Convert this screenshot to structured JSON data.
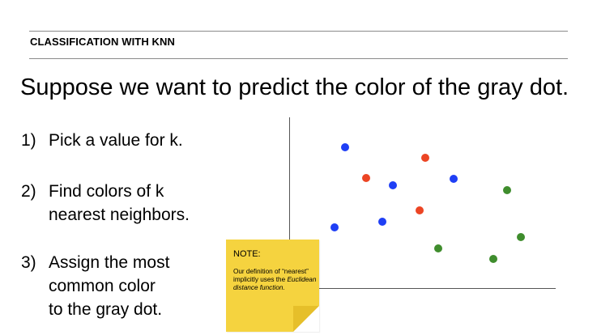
{
  "section_label": "CLASSIFICATION WITH KNN",
  "headline": "Suppose we want to predict the color of the gray dot.",
  "steps": [
    {
      "number": "1)",
      "lines": [
        "Pick a value for k."
      ]
    },
    {
      "number": "2)",
      "lines": [
        "Find colors of k",
        "nearest neighbors."
      ]
    },
    {
      "number": "3)",
      "lines": [
        "Assign the most",
        "common color",
        "to the gray dot."
      ]
    }
  ],
  "note": {
    "title": "NOTE:",
    "body_prefix": "Our definition of “nearest” implicitly uses the ",
    "body_emphasis": "Euclidean distance function."
  },
  "colors": {
    "blue": "#1f3ff5",
    "red": "#ec4524",
    "green": "#3f8d2d",
    "note_yellow": "#f5d33f",
    "rule_gray": "#8a8a8a"
  },
  "chart_data": {
    "type": "scatter",
    "title": "",
    "xlabel": "",
    "ylabel": "",
    "grid": false,
    "series": [
      {
        "color": "blue",
        "points": [
          [
            426,
            182
          ],
          [
            485,
            229
          ],
          [
            560,
            221
          ],
          [
            472,
            274
          ],
          [
            413,
            281
          ]
        ]
      },
      {
        "color": "red",
        "points": [
          [
            525,
            195
          ],
          [
            452,
            220
          ],
          [
            518,
            260
          ]
        ]
      },
      {
        "color": "green",
        "points": [
          [
            626,
            235
          ],
          [
            643,
            293
          ],
          [
            541,
            307
          ],
          [
            609,
            320
          ]
        ]
      }
    ]
  }
}
